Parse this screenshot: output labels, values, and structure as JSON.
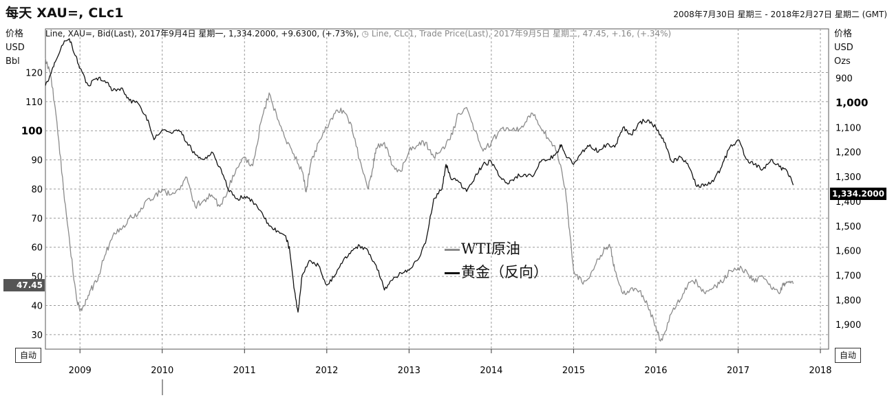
{
  "header": {
    "title": "每天 XAU=, CLc1",
    "date_range": "2008年7月30日 星期三 - 2018年2月27日 星期二 (GMT)"
  },
  "legend_top": {
    "series1": "Line, XAU=, Bid(Last), 2017年9月4日 星期一, 1,334.2000, +9.6300, (+.73%),",
    "series2": "Line, CLc1, Trade Price(Last), 2017年9月5日 星期二, 47.45, +.16, (+.34%)"
  },
  "left_axis": {
    "label1": "价格",
    "label2": "USD",
    "label3": "Bbl"
  },
  "right_axis": {
    "label1": "价格",
    "label2": "USD",
    "label3": "Ozs"
  },
  "auto_button": "自动",
  "tags": {
    "left_value": "47.45",
    "right_value": "1,334.2000"
  },
  "colors": {
    "wti": "#8a8a8a",
    "gold": "#111111",
    "grid": "#999999"
  },
  "chart_data": {
    "type": "line",
    "x_ticks": [
      "2009",
      "2010",
      "2011",
      "2012",
      "2013",
      "2014",
      "2015",
      "2016",
      "2017",
      "2018"
    ],
    "y_left": {
      "range": [
        25,
        135
      ],
      "ticks": [
        "30",
        "40",
        "50",
        "60",
        "70",
        "80",
        "90",
        "100",
        "110",
        "120"
      ]
    },
    "y_right": {
      "range": [
        2000,
        700
      ],
      "inverted": true,
      "ticks": [
        "900",
        "1,000",
        "1,100",
        "1,200",
        "1,300",
        "1,400",
        "1,500",
        "1,600",
        "1,700",
        "1,800",
        "1,900"
      ]
    },
    "inner_legend": [
      "WTI原油",
      "黄金（反向）"
    ],
    "series": [
      {
        "name": "WTI原油",
        "axis": "left",
        "points": [
          [
            2008.58,
            125
          ],
          [
            2008.65,
            118
          ],
          [
            2008.72,
            103
          ],
          [
            2008.8,
            80
          ],
          [
            2008.88,
            60
          ],
          [
            2008.96,
            42
          ],
          [
            2009.0,
            38
          ],
          [
            2009.05,
            40
          ],
          [
            2009.12,
            45
          ],
          [
            2009.2,
            48
          ],
          [
            2009.3,
            57
          ],
          [
            2009.4,
            64
          ],
          [
            2009.5,
            66
          ],
          [
            2009.6,
            70
          ],
          [
            2009.7,
            71
          ],
          [
            2009.8,
            76
          ],
          [
            2009.9,
            77
          ],
          [
            2010.0,
            80
          ],
          [
            2010.1,
            78
          ],
          [
            2010.2,
            80
          ],
          [
            2010.3,
            84
          ],
          [
            2010.4,
            74
          ],
          [
            2010.5,
            76
          ],
          [
            2010.6,
            78
          ],
          [
            2010.7,
            74
          ],
          [
            2010.8,
            80
          ],
          [
            2010.9,
            87
          ],
          [
            2011.0,
            91
          ],
          [
            2011.1,
            88
          ],
          [
            2011.2,
            103
          ],
          [
            2011.3,
            113
          ],
          [
            2011.4,
            104
          ],
          [
            2011.5,
            97
          ],
          [
            2011.6,
            92
          ],
          [
            2011.7,
            86
          ],
          [
            2011.75,
            79
          ],
          [
            2011.8,
            88
          ],
          [
            2011.9,
            96
          ],
          [
            2012.0,
            101
          ],
          [
            2012.1,
            106
          ],
          [
            2012.2,
            107
          ],
          [
            2012.3,
            102
          ],
          [
            2012.4,
            90
          ],
          [
            2012.5,
            80
          ],
          [
            2012.55,
            86
          ],
          [
            2012.6,
            94
          ],
          [
            2012.7,
            96
          ],
          [
            2012.8,
            88
          ],
          [
            2012.9,
            86
          ],
          [
            2013.0,
            93
          ],
          [
            2013.1,
            95
          ],
          [
            2013.2,
            96
          ],
          [
            2013.3,
            91
          ],
          [
            2013.4,
            94
          ],
          [
            2013.5,
            97
          ],
          [
            2013.6,
            106
          ],
          [
            2013.7,
            108
          ],
          [
            2013.8,
            100
          ],
          [
            2013.9,
            93
          ],
          [
            2014.0,
            96
          ],
          [
            2014.1,
            100
          ],
          [
            2014.2,
            101
          ],
          [
            2014.3,
            100
          ],
          [
            2014.4,
            102
          ],
          [
            2014.5,
            106
          ],
          [
            2014.6,
            101
          ],
          [
            2014.7,
            97
          ],
          [
            2014.8,
            93
          ],
          [
            2014.9,
            80
          ],
          [
            2014.95,
            66
          ],
          [
            2015.0,
            52
          ],
          [
            2015.1,
            48
          ],
          [
            2015.2,
            50
          ],
          [
            2015.3,
            56
          ],
          [
            2015.4,
            60
          ],
          [
            2015.45,
            60
          ],
          [
            2015.5,
            52
          ],
          [
            2015.6,
            44
          ],
          [
            2015.7,
            46
          ],
          [
            2015.8,
            45
          ],
          [
            2015.9,
            40
          ],
          [
            2016.0,
            33
          ],
          [
            2016.05,
            28
          ],
          [
            2016.1,
            30
          ],
          [
            2016.2,
            38
          ],
          [
            2016.3,
            42
          ],
          [
            2016.4,
            48
          ],
          [
            2016.5,
            48
          ],
          [
            2016.6,
            44
          ],
          [
            2016.7,
            46
          ],
          [
            2016.8,
            48
          ],
          [
            2016.9,
            52
          ],
          [
            2017.0,
            53
          ],
          [
            2017.1,
            52
          ],
          [
            2017.2,
            48
          ],
          [
            2017.3,
            50
          ],
          [
            2017.4,
            46
          ],
          [
            2017.5,
            44
          ],
          [
            2017.55,
            47
          ],
          [
            2017.6,
            48
          ],
          [
            2017.67,
            47.45
          ]
        ]
      },
      {
        "name": "黄金（反向）",
        "axis": "right",
        "points": [
          [
            2008.58,
            930
          ],
          [
            2008.65,
            880
          ],
          [
            2008.72,
            820
          ],
          [
            2008.8,
            760
          ],
          [
            2008.87,
            740
          ],
          [
            2008.95,
            810
          ],
          [
            2009.0,
            860
          ],
          [
            2009.1,
            930
          ],
          [
            2009.2,
            900
          ],
          [
            2009.3,
            910
          ],
          [
            2009.4,
            950
          ],
          [
            2009.5,
            940
          ],
          [
            2009.6,
            990
          ],
          [
            2009.7,
            1000
          ],
          [
            2009.8,
            1050
          ],
          [
            2009.9,
            1150
          ],
          [
            2010.0,
            1110
          ],
          [
            2010.1,
            1120
          ],
          [
            2010.2,
            1110
          ],
          [
            2010.3,
            1160
          ],
          [
            2010.4,
            1210
          ],
          [
            2010.5,
            1230
          ],
          [
            2010.6,
            1200
          ],
          [
            2010.7,
            1260
          ],
          [
            2010.8,
            1350
          ],
          [
            2010.9,
            1390
          ],
          [
            2011.0,
            1380
          ],
          [
            2011.1,
            1400
          ],
          [
            2011.2,
            1440
          ],
          [
            2011.3,
            1500
          ],
          [
            2011.4,
            1520
          ],
          [
            2011.5,
            1540
          ],
          [
            2011.55,
            1600
          ],
          [
            2011.6,
            1750
          ],
          [
            2011.65,
            1850
          ],
          [
            2011.7,
            1700
          ],
          [
            2011.8,
            1640
          ],
          [
            2011.9,
            1660
          ],
          [
            2012.0,
            1740
          ],
          [
            2012.1,
            1700
          ],
          [
            2012.2,
            1640
          ],
          [
            2012.3,
            1600
          ],
          [
            2012.4,
            1580
          ],
          [
            2012.5,
            1600
          ],
          [
            2012.6,
            1660
          ],
          [
            2012.7,
            1760
          ],
          [
            2012.8,
            1720
          ],
          [
            2012.9,
            1690
          ],
          [
            2013.0,
            1680
          ],
          [
            2013.1,
            1640
          ],
          [
            2013.2,
            1570
          ],
          [
            2013.3,
            1390
          ],
          [
            2013.4,
            1350
          ],
          [
            2013.45,
            1250
          ],
          [
            2013.5,
            1300
          ],
          [
            2013.6,
            1320
          ],
          [
            2013.7,
            1360
          ],
          [
            2013.8,
            1300
          ],
          [
            2013.9,
            1250
          ],
          [
            2014.0,
            1240
          ],
          [
            2014.1,
            1300
          ],
          [
            2014.2,
            1330
          ],
          [
            2014.3,
            1300
          ],
          [
            2014.4,
            1290
          ],
          [
            2014.5,
            1300
          ],
          [
            2014.6,
            1240
          ],
          [
            2014.7,
            1230
          ],
          [
            2014.8,
            1200
          ],
          [
            2014.85,
            1170
          ],
          [
            2014.9,
            1210
          ],
          [
            2015.0,
            1250
          ],
          [
            2015.1,
            1200
          ],
          [
            2015.2,
            1170
          ],
          [
            2015.3,
            1200
          ],
          [
            2015.4,
            1170
          ],
          [
            2015.5,
            1180
          ],
          [
            2015.6,
            1100
          ],
          [
            2015.7,
            1130
          ],
          [
            2015.8,
            1080
          ],
          [
            2015.9,
            1070
          ],
          [
            2016.0,
            1100
          ],
          [
            2016.1,
            1160
          ],
          [
            2016.2,
            1240
          ],
          [
            2016.3,
            1220
          ],
          [
            2016.4,
            1260
          ],
          [
            2016.5,
            1340
          ],
          [
            2016.6,
            1330
          ],
          [
            2016.7,
            1320
          ],
          [
            2016.8,
            1260
          ],
          [
            2016.9,
            1180
          ],
          [
            2017.0,
            1150
          ],
          [
            2017.1,
            1230
          ],
          [
            2017.2,
            1250
          ],
          [
            2017.3,
            1270
          ],
          [
            2017.4,
            1230
          ],
          [
            2017.5,
            1260
          ],
          [
            2017.6,
            1280
          ],
          [
            2017.67,
            1334.2
          ]
        ]
      }
    ]
  }
}
